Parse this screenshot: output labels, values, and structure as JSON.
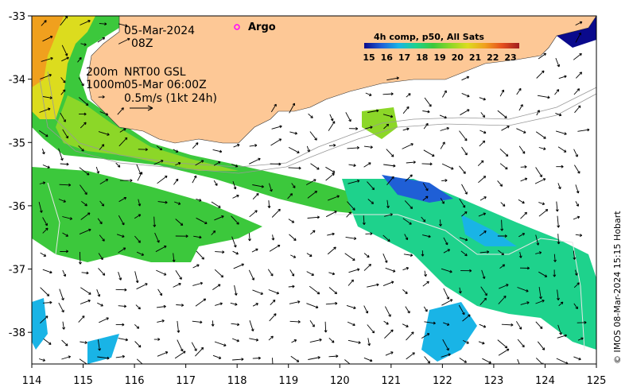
{
  "map": {
    "date": "05-Mar-2024",
    "hour": "08Z",
    "contour_label_200": "200m",
    "contour_label_1000": "1000m",
    "product": "NRT00 GSL",
    "product_time": "05-Mar 06:00Z",
    "scale_arrow_label": "0.5m/s (1kt 24h)",
    "argo_label": "Argo",
    "credit": "© IMOS 08-Mar-2024 15:15 Hobart",
    "land_color": "#fdc896",
    "argo_color": "#ff00ff",
    "colorbar": {
      "title": "4h comp, p50, All Sats",
      "ticks": [
        "15",
        "16",
        "17",
        "18",
        "19",
        "20",
        "21",
        "22",
        "23"
      ],
      "colors": [
        "#0a0a8c",
        "#1f5fd6",
        "#19b4e6",
        "#1ed28c",
        "#3cc83c",
        "#8cd728",
        "#dcdc1e",
        "#f0a01e",
        "#e6501e",
        "#a01e1e"
      ]
    },
    "x_ticks": [
      "114",
      "115",
      "116",
      "117",
      "118",
      "119",
      "120",
      "121",
      "122",
      "123",
      "124",
      "125"
    ],
    "y_ticks": [
      "-33",
      "-34",
      "-35",
      "-36",
      "-37",
      "-38"
    ],
    "x_range": [
      114,
      125
    ],
    "y_range": [
      -38.5,
      -33
    ]
  }
}
